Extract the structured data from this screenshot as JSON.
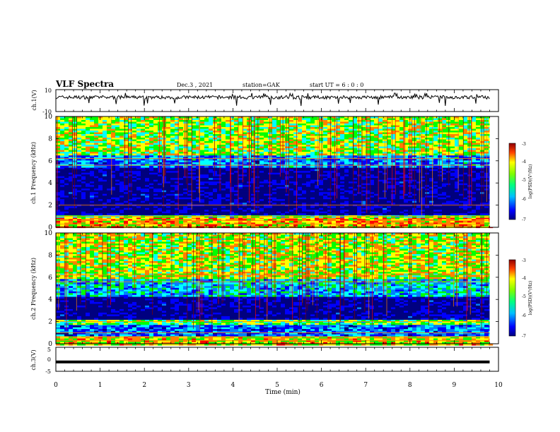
{
  "header": {
    "title": "VLF Spectra",
    "date": "Dec.3 , 2021",
    "station": "station=GAK",
    "start": "start UT = 6 : 0 : 0"
  },
  "chart_data": [
    {
      "type": "line",
      "panel": "ch1-waveform",
      "ylabel": "ch.1(V)",
      "ylim": [
        -10,
        10
      ],
      "y_ticks": [
        "10",
        "-10"
      ],
      "xlim": [
        0,
        10
      ],
      "x_end_min": 9.8,
      "series": [
        {
          "values_summary": "noisy trace around 3 V",
          "mean": 3,
          "min": -5,
          "max": 7
        }
      ]
    },
    {
      "type": "heatmap",
      "panel": "ch1-spectrogram",
      "ylabel": "ch.1 Frequency (kHz)",
      "ylim": [
        0,
        10
      ],
      "y_ticks": [
        "0",
        "2",
        "4",
        "6",
        "8",
        "10"
      ],
      "xlim": [
        0,
        10
      ],
      "x_end_min": 9.8,
      "colorbar": {
        "label": "log(PSD)(V²/Hz)",
        "range": [
          -7,
          -3
        ],
        "ticks": [
          "-3",
          "-4",
          "-5",
          "-6",
          "-7"
        ]
      },
      "bands": [
        {
          "from_khz": 0.0,
          "to_khz": 0.9,
          "level": -4.3
        },
        {
          "from_khz": 0.9,
          "to_khz": 1.2,
          "level": -5.1
        },
        {
          "from_khz": 1.2,
          "to_khz": 5.4,
          "level": -6.8
        },
        {
          "from_khz": 5.4,
          "to_khz": 6.5,
          "level": -5.9
        },
        {
          "from_khz": 6.5,
          "to_khz": 10.0,
          "level": -4.8
        }
      ]
    },
    {
      "type": "heatmap",
      "panel": "ch2-spectrogram",
      "ylabel": "ch.2 Frequency (kHz)",
      "ylim": [
        0,
        10
      ],
      "y_ticks": [
        "0",
        "2",
        "4",
        "6",
        "8",
        "10"
      ],
      "xlim": [
        0,
        10
      ],
      "x_end_min": 9.8,
      "colorbar": {
        "label": "log(PSD)(V²/Hz)",
        "range": [
          -7,
          -3
        ],
        "ticks": [
          "-3",
          "-4",
          "-5",
          "-6",
          "-7"
        ]
      },
      "bands": [
        {
          "from_khz": 0.0,
          "to_khz": 0.8,
          "level": -4.5
        },
        {
          "from_khz": 0.8,
          "to_khz": 1.8,
          "level": -6.0
        },
        {
          "from_khz": 1.8,
          "to_khz": 2.2,
          "level": -5.0
        },
        {
          "from_khz": 2.2,
          "to_khz": 4.4,
          "level": -6.8
        },
        {
          "from_khz": 4.4,
          "to_khz": 6.0,
          "level": -5.6
        },
        {
          "from_khz": 6.0,
          "to_khz": 10.0,
          "level": -4.7
        }
      ]
    },
    {
      "type": "line",
      "panel": "ch3-waveform",
      "ylabel": "ch.3(V)",
      "ylim": [
        -5,
        5
      ],
      "y_ticks": [
        "5",
        "0",
        "-5"
      ],
      "xlim": [
        0,
        10
      ],
      "x_end_min": 9.8,
      "series": [
        {
          "values_summary": "flat line",
          "mean": -1.1
        }
      ]
    }
  ],
  "xaxis": {
    "label": "Time (min)",
    "ticks": [
      "0",
      "1",
      "2",
      "3",
      "4",
      "5",
      "6",
      "7",
      "8",
      "9",
      "10"
    ]
  },
  "colors": {
    "colormap": [
      "#000080",
      "#0000ff",
      "#0080ff",
      "#00ffff",
      "#00ff00",
      "#ffff00",
      "#ff8000",
      "#ff0000",
      "#800000"
    ],
    "trace": "#000000"
  }
}
